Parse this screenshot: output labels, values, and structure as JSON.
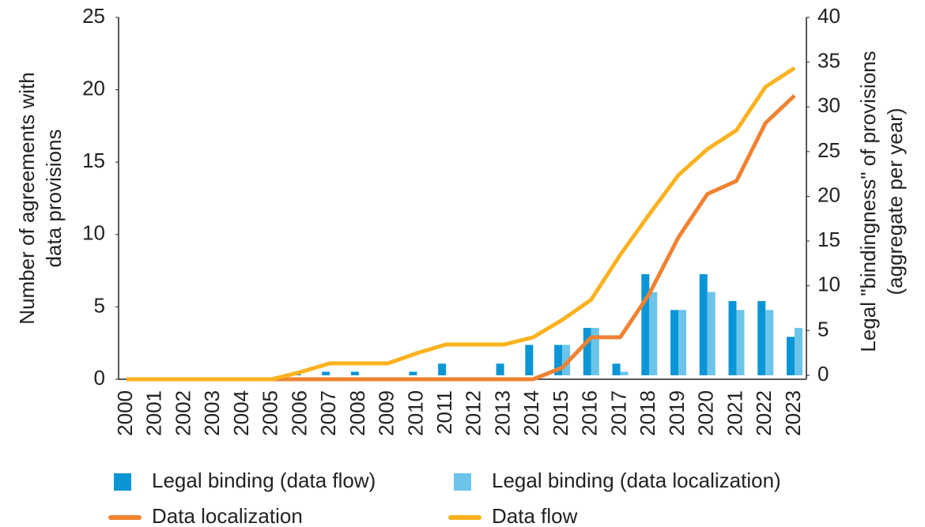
{
  "chart_data": {
    "type": "bar",
    "ylabel": [
      "Number of agreements with",
      "data provisions"
    ],
    "y2label": [
      "Legal \"bindingness\" of provisions",
      "(aggregate per year)"
    ],
    "categories": [
      "2000",
      "2001",
      "2002",
      "2003",
      "2004",
      "2005",
      "2006",
      "2007",
      "2008",
      "2009",
      "2010",
      "2011",
      "2012",
      "2013",
      "2014",
      "2015",
      "2016",
      "2017",
      "2018",
      "2019",
      "2020",
      "2021",
      "2022",
      "2023"
    ],
    "series": [
      {
        "name": "Legal binding (data flow)",
        "type": "bar",
        "axis": "y2",
        "color": "#0a96d6",
        "values": [
          0,
          0,
          0,
          0,
          0,
          0,
          0.3,
          0.4,
          0.4,
          0,
          0.4,
          1.3,
          0,
          1.3,
          3.4,
          3.4,
          5.3,
          1.3,
          11.3,
          7.3,
          11.3,
          8.3,
          8.3,
          4.3
        ]
      },
      {
        "name": "Legal binding (data localization)",
        "type": "bar",
        "axis": "y2",
        "color": "#6cc4ea",
        "values": [
          0,
          0,
          0,
          0,
          0,
          0,
          0,
          0,
          0,
          0,
          0,
          0,
          0,
          0,
          0,
          3.4,
          5.3,
          0.4,
          9.3,
          7.3,
          9.3,
          7.3,
          7.3,
          5.3
        ]
      },
      {
        "name": "Data localization",
        "type": "line",
        "color": "#f08232",
        "values": [
          0,
          0,
          0,
          0,
          0,
          0,
          0,
          0,
          0,
          0,
          0,
          0,
          0,
          0,
          0,
          0.8,
          2.9,
          2.9,
          5.9,
          9.8,
          12.8,
          13.7,
          17.7,
          19.6
        ]
      },
      {
        "name": "Data flow",
        "type": "line",
        "color": "#fbb21e",
        "values": [
          0,
          0,
          0,
          0,
          0,
          0,
          0.5,
          1.1,
          1.1,
          1.1,
          1.8,
          2.4,
          2.4,
          2.4,
          2.9,
          4.1,
          5.5,
          8.6,
          11.4,
          14.1,
          15.9,
          17.2,
          20.2,
          21.5
        ]
      }
    ],
    "ylim": [
      0,
      25
    ],
    "yticks": [
      0,
      5,
      10,
      15,
      20,
      25
    ],
    "y2lim": [
      0,
      40
    ],
    "y2ticks": [
      0,
      5,
      10,
      15,
      20,
      25,
      30,
      35,
      40
    ],
    "grid": false,
    "legend": "bottom"
  }
}
